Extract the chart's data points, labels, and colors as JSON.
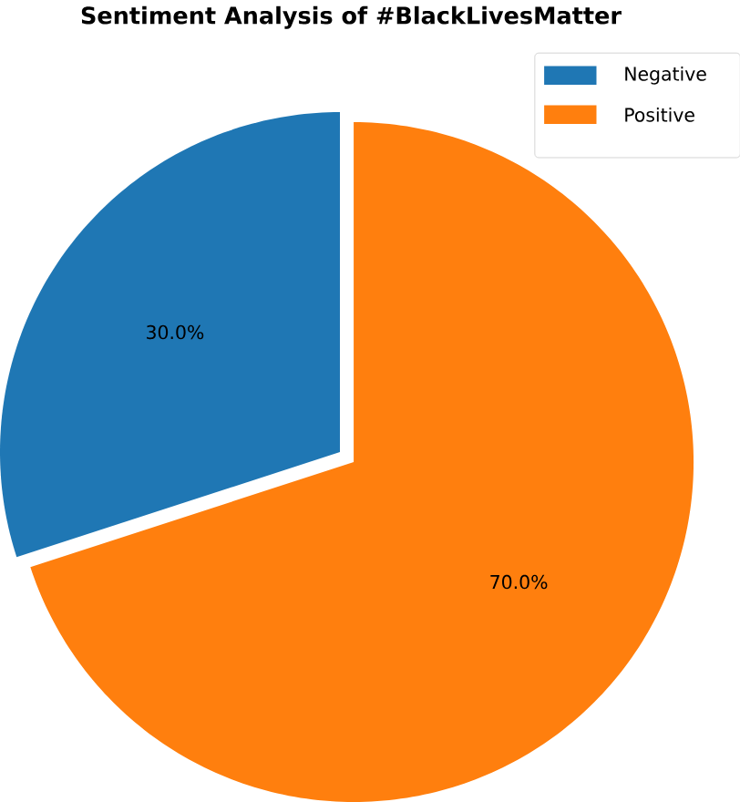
{
  "chart_data": {
    "type": "pie",
    "title": "Sentiment Analysis of #BlackLivesMatter",
    "categories": [
      "Negative",
      "Positive"
    ],
    "values": [
      30,
      70
    ],
    "colors": [
      "#1f77b4",
      "#ff7f0e"
    ],
    "value_labels": [
      "30.0%",
      "70.0%"
    ],
    "legend": "top right"
  }
}
